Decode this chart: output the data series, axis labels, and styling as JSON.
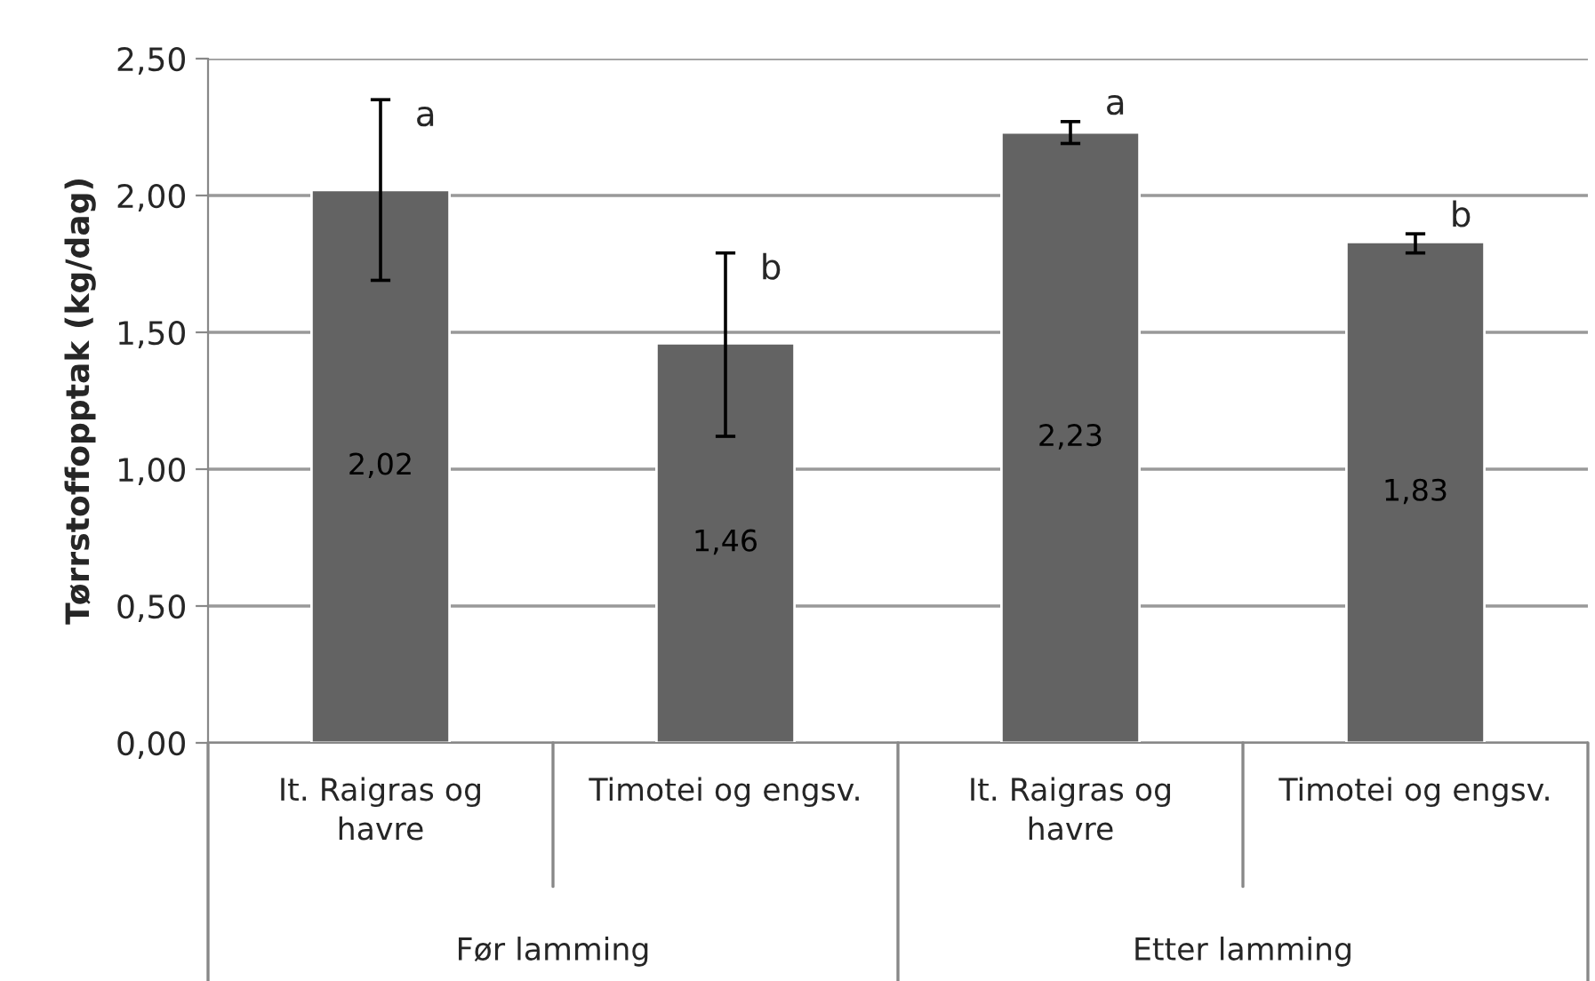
{
  "chart_data": {
    "type": "bar",
    "ylabel": "Tørrstoffopptak (kg/dag)",
    "categories": [
      "It. Raigras og\nhavre",
      "Timotei og engsv.",
      "It. Raigras og\nhavre",
      "Timotei og engsv."
    ],
    "values": [
      2.02,
      1.46,
      2.23,
      1.83
    ],
    "value_labels": [
      "2,02",
      "1,46",
      "2,23",
      "1,83"
    ],
    "errors": [
      [
        1.69,
        2.35
      ],
      [
        1.12,
        1.79
      ],
      [
        2.19,
        2.27
      ],
      [
        1.79,
        1.86
      ]
    ],
    "color": "#636363",
    "ylim": [
      0,
      2.5
    ],
    "yticks": [
      {
        "value": 0,
        "label": "0,00"
      },
      {
        "value": 0.5,
        "label": "0,50"
      },
      {
        "value": 1.0,
        "label": "1,00"
      },
      {
        "value": 1.5,
        "label": "1,50"
      },
      {
        "value": 2.0,
        "label": "2,00"
      },
      {
        "value": 2.5,
        "label": "2,50"
      }
    ],
    "grid": "y",
    "annotations": [
      "a",
      "b",
      "a",
      "b",
      "Før lamming",
      "Etter lamming"
    ]
  }
}
